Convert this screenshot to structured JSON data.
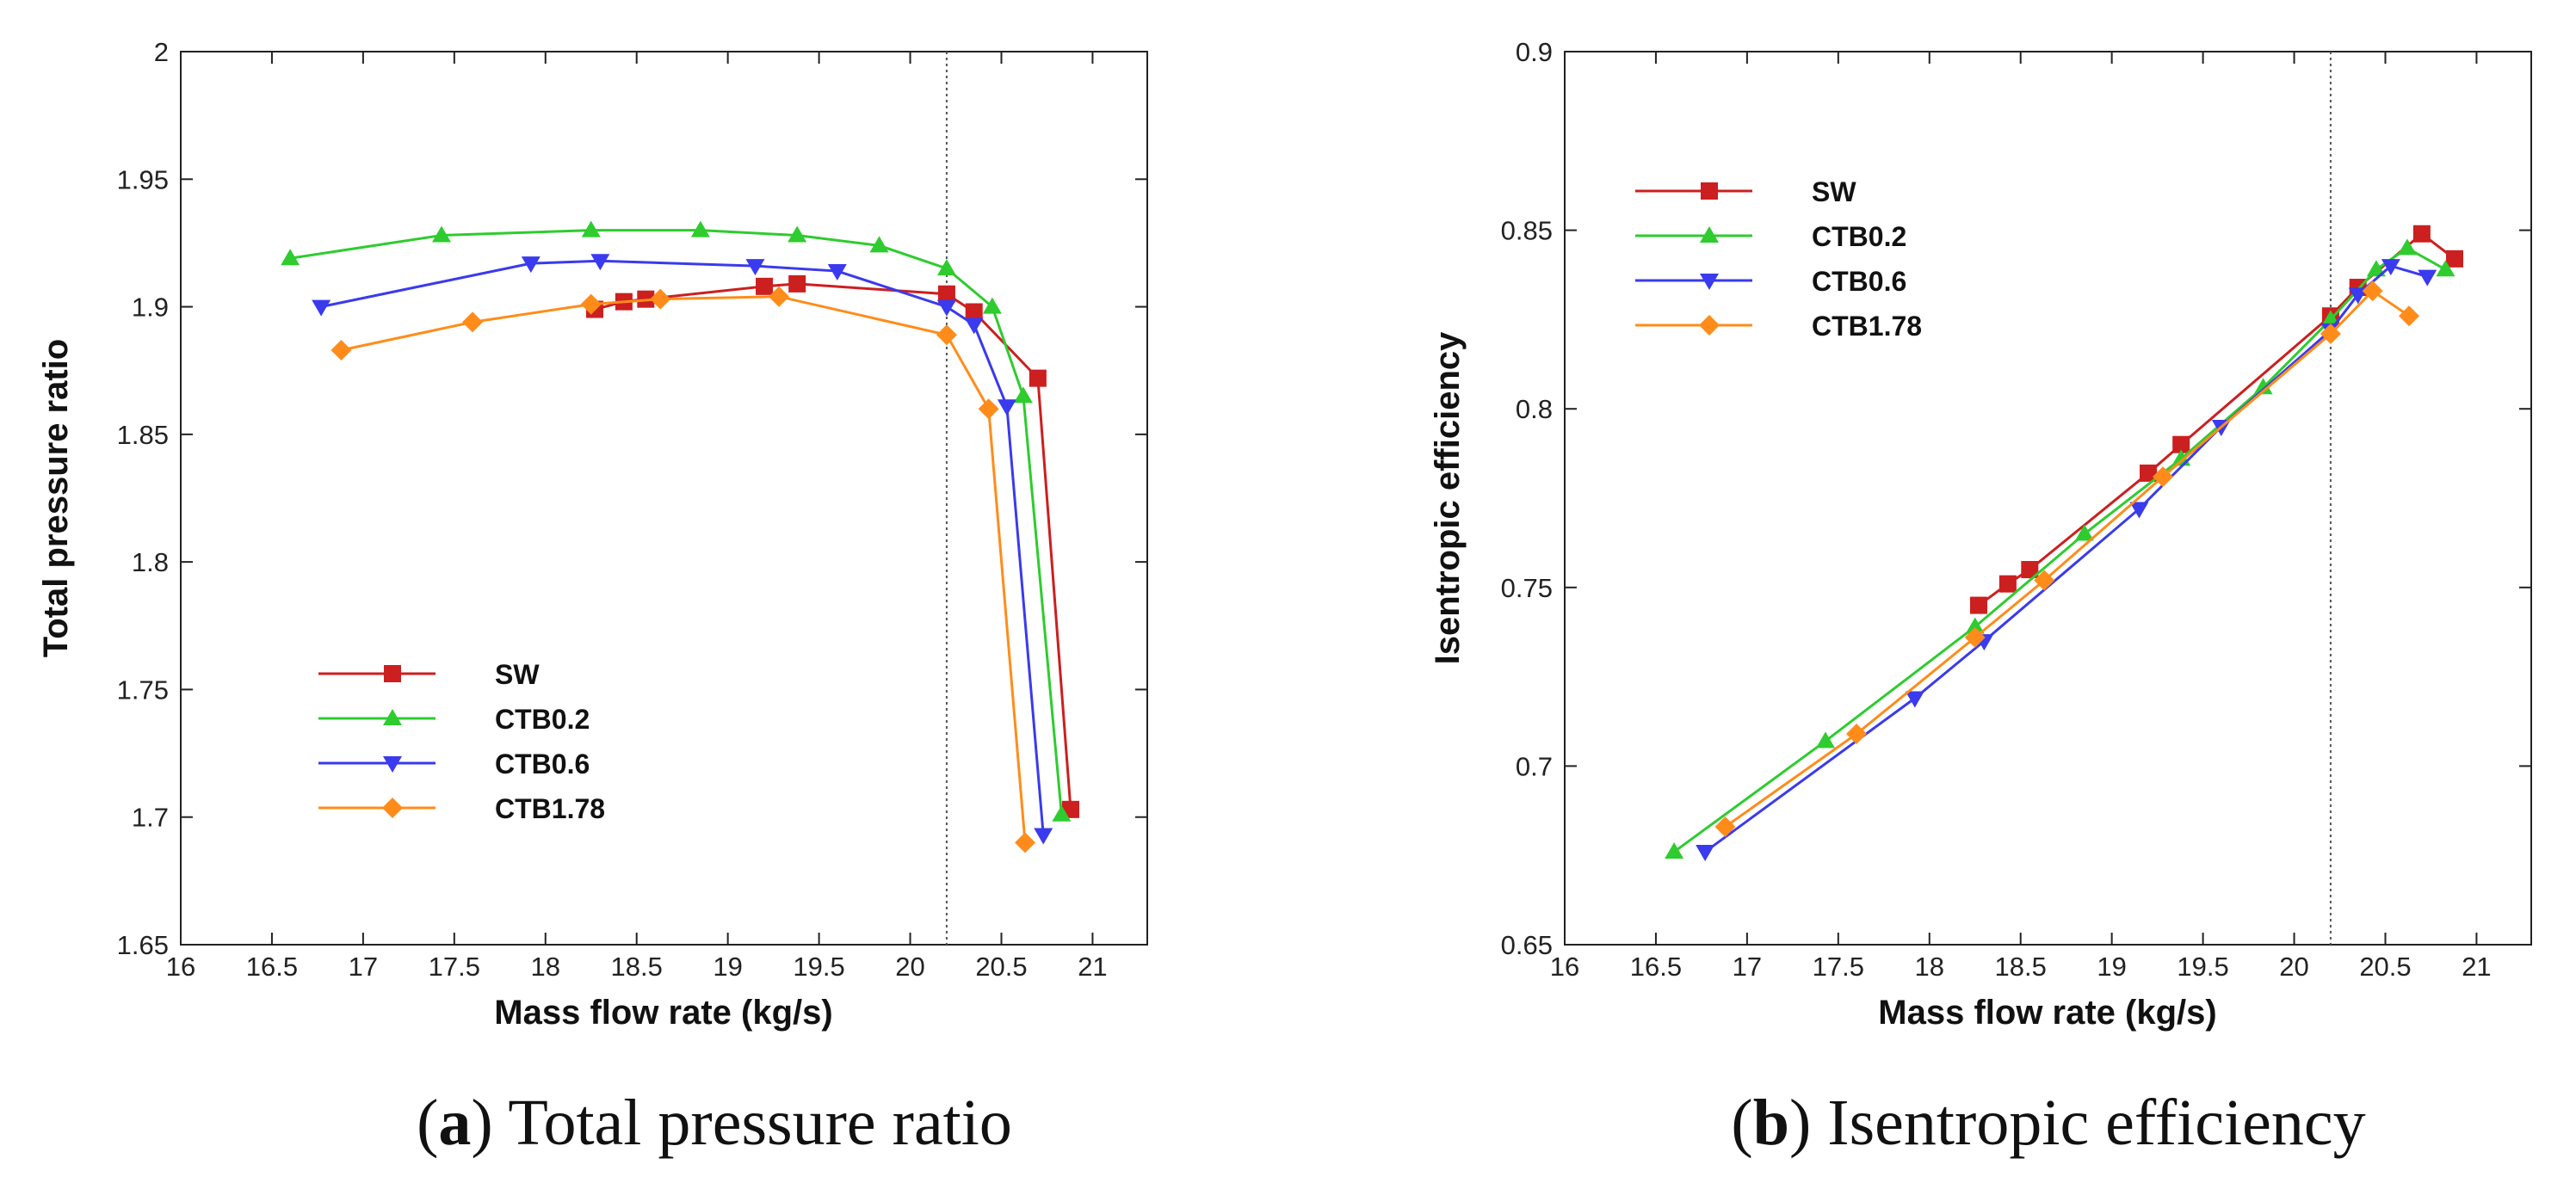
{
  "chart_data": [
    {
      "type": "line",
      "panel": "a",
      "caption_letter": "a",
      "caption_text": ") Total pressure ratio",
      "caption_open": "(",
      "xlabel": "Mass flow rate (kg/s)",
      "ylabel": "Total pressure ratio",
      "xlim": [
        16,
        21.3
      ],
      "ylim": [
        1.65,
        2.0
      ],
      "xticks": [
        "16",
        "16.5",
        "17",
        "17.5",
        "18",
        "18.5",
        "19",
        "19.5",
        "20",
        "20.5",
        "21"
      ],
      "yticks": [
        "1.65",
        "1.7",
        "1.75",
        "1.8",
        "1.85",
        "1.9",
        "1.95",
        "2"
      ],
      "ref_line_x": 20.2,
      "legend_position": "bottom-left",
      "series": [
        {
          "name": "SW",
          "color": "#cc1f1f",
          "marker": "square",
          "x": [
            18.27,
            18.43,
            18.55,
            19.2,
            19.38,
            20.2,
            20.35,
            20.7,
            20.88
          ],
          "y": [
            1.899,
            1.902,
            1.903,
            1.908,
            1.909,
            1.905,
            1.898,
            1.872,
            1.703
          ]
        },
        {
          "name": "CTB0.2",
          "color": "#2ecc2e",
          "marker": "triangle-up",
          "x": [
            16.6,
            17.43,
            18.25,
            18.85,
            19.38,
            19.83,
            20.2,
            20.45,
            20.62,
            20.83
          ],
          "y": [
            1.919,
            1.928,
            1.93,
            1.93,
            1.928,
            1.924,
            1.915,
            1.9,
            1.865,
            1.701
          ]
        },
        {
          "name": "CTB0.6",
          "color": "#3a3aee",
          "marker": "triangle-down",
          "x": [
            16.77,
            17.92,
            18.3,
            19.15,
            19.6,
            20.2,
            20.35,
            20.53,
            20.73
          ],
          "y": [
            1.9,
            1.917,
            1.918,
            1.916,
            1.914,
            1.9,
            1.893,
            1.861,
            1.693
          ]
        },
        {
          "name": "CTB1.78",
          "color": "#ff8c1a",
          "marker": "diamond",
          "x": [
            16.88,
            17.6,
            18.25,
            18.63,
            19.28,
            20.2,
            20.43,
            20.63
          ],
          "y": [
            1.883,
            1.894,
            1.901,
            1.903,
            1.904,
            1.889,
            1.86,
            1.69
          ]
        }
      ]
    },
    {
      "type": "line",
      "panel": "b",
      "caption_letter": "b",
      "caption_text": ") Isentropic efficiency",
      "caption_open": "(",
      "xlabel": "Mass flow rate (kg/s)",
      "ylabel": "Isentropic efficiency",
      "xlim": [
        16,
        21.3
      ],
      "ylim": [
        0.65,
        0.9
      ],
      "xticks": [
        "16",
        "16.5",
        "17",
        "17.5",
        "18",
        "18.5",
        "19",
        "19.5",
        "20",
        "20.5",
        "21"
      ],
      "yticks": [
        "0.65",
        "0.7",
        "0.75",
        "0.8",
        "0.85",
        "0.9"
      ],
      "ref_line_x": 20.2,
      "legend_position": "top-left",
      "series": [
        {
          "name": "SW",
          "color": "#cc1f1f",
          "marker": "square",
          "x": [
            18.27,
            18.43,
            18.55,
            19.2,
            19.38,
            20.2,
            20.35,
            20.7,
            20.88
          ],
          "y": [
            0.745,
            0.751,
            0.755,
            0.782,
            0.79,
            0.826,
            0.834,
            0.849,
            0.842
          ]
        },
        {
          "name": "CTB0.2",
          "color": "#2ecc2e",
          "marker": "triangle-up",
          "x": [
            16.6,
            17.43,
            18.25,
            18.85,
            19.38,
            19.83,
            20.2,
            20.45,
            20.62,
            20.83
          ],
          "y": [
            0.676,
            0.707,
            0.739,
            0.765,
            0.786,
            0.806,
            0.825,
            0.839,
            0.845,
            0.839
          ]
        },
        {
          "name": "CTB0.6",
          "color": "#3a3aee",
          "marker": "triangle-down",
          "x": [
            16.77,
            17.92,
            18.3,
            19.15,
            19.6,
            20.2,
            20.35,
            20.53,
            20.73
          ],
          "y": [
            0.676,
            0.719,
            0.735,
            0.772,
            0.795,
            0.822,
            0.832,
            0.84,
            0.837
          ]
        },
        {
          "name": "CTB1.78",
          "color": "#ff8c1a",
          "marker": "diamond",
          "x": [
            16.88,
            17.6,
            18.25,
            18.63,
            19.28,
            20.2,
            20.43,
            20.63
          ],
          "y": [
            0.683,
            0.709,
            0.736,
            0.752,
            0.781,
            0.821,
            0.833,
            0.826
          ]
        }
      ]
    }
  ]
}
